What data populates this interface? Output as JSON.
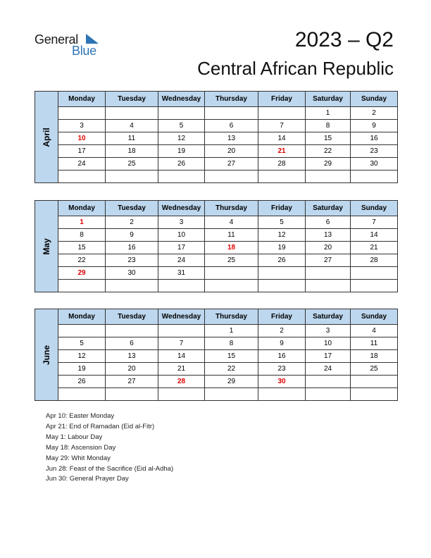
{
  "logo": {
    "general": "General",
    "blue": "Blue"
  },
  "title": "2023 – Q2",
  "country": "Central African Republic",
  "weekdays": [
    "Monday",
    "Tuesday",
    "Wednesday",
    "Thursday",
    "Friday",
    "Saturday",
    "Sunday"
  ],
  "months": [
    {
      "name": "April",
      "rows": [
        [
          "",
          "",
          "",
          "",
          "",
          "1",
          "2"
        ],
        [
          "3",
          "4",
          "5",
          "6",
          "7",
          "8",
          "9"
        ],
        [
          "10",
          "11",
          "12",
          "13",
          "14",
          "15",
          "16"
        ],
        [
          "17",
          "18",
          "19",
          "20",
          "21",
          "22",
          "23"
        ],
        [
          "24",
          "25",
          "26",
          "27",
          "28",
          "29",
          "30"
        ],
        [
          "",
          "",
          "",
          "",
          "",
          "",
          ""
        ]
      ],
      "holidays": [
        "10",
        "21"
      ]
    },
    {
      "name": "May",
      "rows": [
        [
          "1",
          "2",
          "3",
          "4",
          "5",
          "6",
          "7"
        ],
        [
          "8",
          "9",
          "10",
          "11",
          "12",
          "13",
          "14"
        ],
        [
          "15",
          "16",
          "17",
          "18",
          "19",
          "20",
          "21"
        ],
        [
          "22",
          "23",
          "24",
          "25",
          "26",
          "27",
          "28"
        ],
        [
          "29",
          "30",
          "31",
          "",
          "",
          "",
          ""
        ],
        [
          "",
          "",
          "",
          "",
          "",
          "",
          ""
        ]
      ],
      "holidays": [
        "1",
        "18",
        "29"
      ]
    },
    {
      "name": "June",
      "rows": [
        [
          "",
          "",
          "",
          "1",
          "2",
          "3",
          "4"
        ],
        [
          "5",
          "6",
          "7",
          "8",
          "9",
          "10",
          "11"
        ],
        [
          "12",
          "13",
          "14",
          "15",
          "16",
          "17",
          "18"
        ],
        [
          "19",
          "20",
          "21",
          "22",
          "23",
          "24",
          "25"
        ],
        [
          "26",
          "27",
          "28",
          "29",
          "30",
          "",
          ""
        ],
        [
          "",
          "",
          "",
          "",
          "",
          "",
          ""
        ]
      ],
      "holidays": [
        "28",
        "30"
      ]
    }
  ],
  "holidays": [
    "Apr 10: Easter Monday",
    "Apr 21: End of Ramadan (Eid al-Fitr)",
    "May 1: Labour Day",
    "May 18: Ascension Day",
    "May 29: Whit Monday",
    "Jun 28: Feast of the Sacrifice (Eid al-Adha)",
    "Jun 30: General Prayer Day"
  ],
  "colors": {
    "header_fill": "#bdd7ee",
    "holiday": "#e00000",
    "logo_blue": "#2e75b6"
  }
}
